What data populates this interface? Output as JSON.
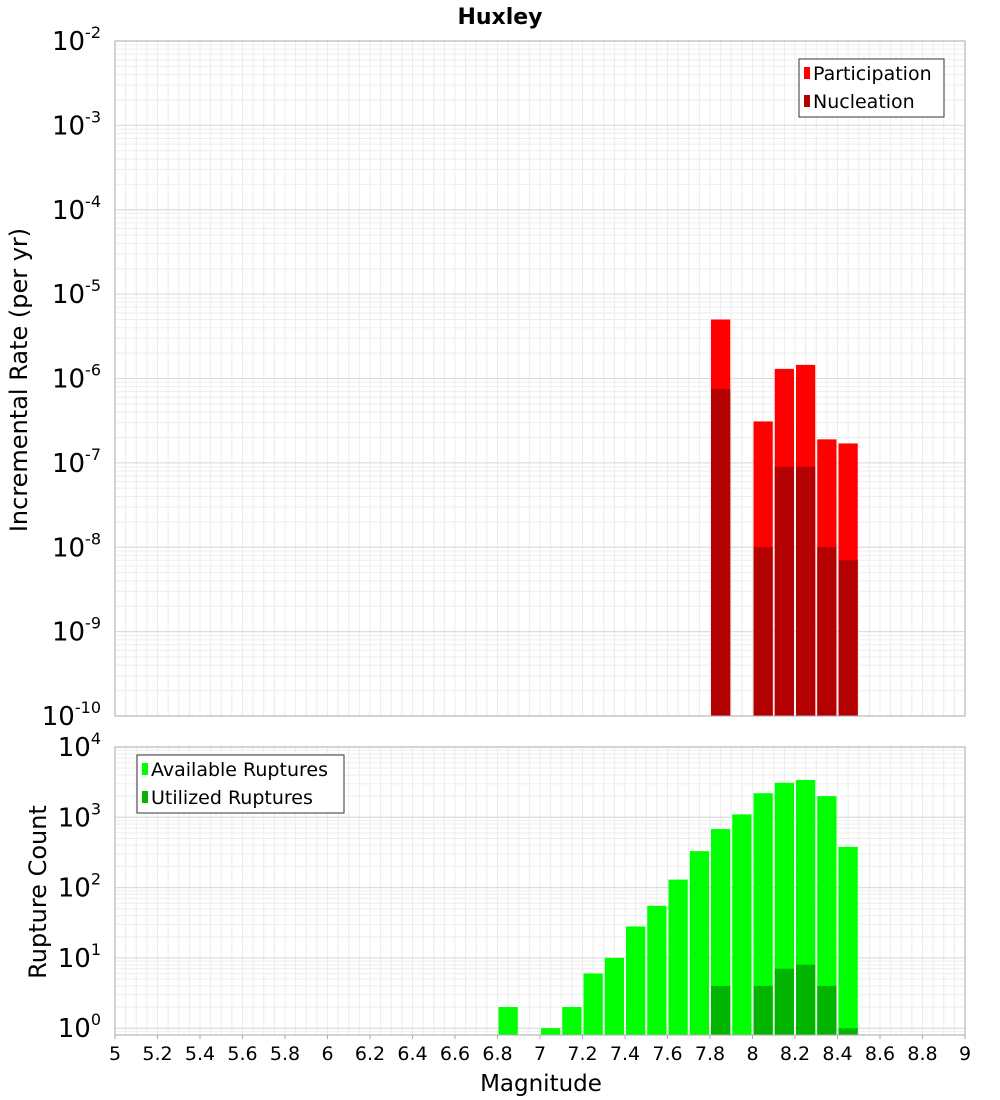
{
  "chart_data": [
    {
      "type": "bar",
      "title": "Huxley",
      "xlabel": "Magnitude",
      "ylabel": "Incremental Rate (per yr)",
      "yscale": "log",
      "ylim": [
        1e-10,
        0.01
      ],
      "xlim": [
        5,
        9
      ],
      "grid": true,
      "legend_position": "top-right",
      "y_tick_exponents": [
        "-2",
        "-3",
        "-4",
        "-5",
        "-6",
        "-7",
        "-8",
        "-9",
        "-10"
      ],
      "y_tick_base": "10",
      "series": [
        {
          "name": "Participation",
          "color": "#ff0000",
          "x": [
            7.85,
            8.05,
            8.15,
            8.25,
            8.35,
            8.45
          ],
          "values": [
            5e-06,
            3.1e-07,
            1.3e-06,
            1.45e-06,
            1.9e-07,
            1.7e-07
          ]
        },
        {
          "name": "Nucleation",
          "color": "#b30000",
          "x": [
            7.85,
            8.05,
            8.15,
            8.25,
            8.35,
            8.45
          ],
          "values": [
            7.5e-07,
            1e-08,
            9e-08,
            9e-08,
            1e-08,
            7e-09
          ]
        }
      ]
    },
    {
      "type": "bar",
      "title": "",
      "xlabel": "Magnitude",
      "ylabel": "Rupture Count",
      "yscale": "log",
      "ylim": [
        0.8,
        10000
      ],
      "xlim": [
        5,
        9
      ],
      "grid": true,
      "legend_position": "top-left",
      "y_tick_exponents": [
        "4",
        "3",
        "2",
        "1",
        "0"
      ],
      "y_tick_base": "10",
      "x_ticks": [
        "5",
        "5.2",
        "5.4",
        "5.6",
        "5.8",
        "6",
        "6.2",
        "6.4",
        "6.6",
        "6.8",
        "7",
        "7.2",
        "7.4",
        "7.6",
        "7.8",
        "8",
        "8.2",
        "8.4",
        "8.6",
        "8.8",
        "9"
      ],
      "series": [
        {
          "name": "Available Ruptures",
          "color": "#00ff00",
          "x": [
            6.85,
            7.05,
            7.15,
            7.25,
            7.35,
            7.45,
            7.55,
            7.65,
            7.75,
            7.85,
            7.95,
            8.05,
            8.15,
            8.25,
            8.35,
            8.45
          ],
          "values": [
            2,
            1,
            2,
            6,
            10,
            28,
            55,
            130,
            330,
            680,
            1100,
            2200,
            3100,
            3400,
            2000,
            380
          ]
        },
        {
          "name": "Utilized Ruptures",
          "color": "#00b400",
          "x": [
            7.85,
            8.05,
            8.15,
            8.25,
            8.35,
            8.45
          ],
          "values": [
            4,
            4,
            7,
            8,
            4,
            1
          ]
        }
      ]
    }
  ]
}
